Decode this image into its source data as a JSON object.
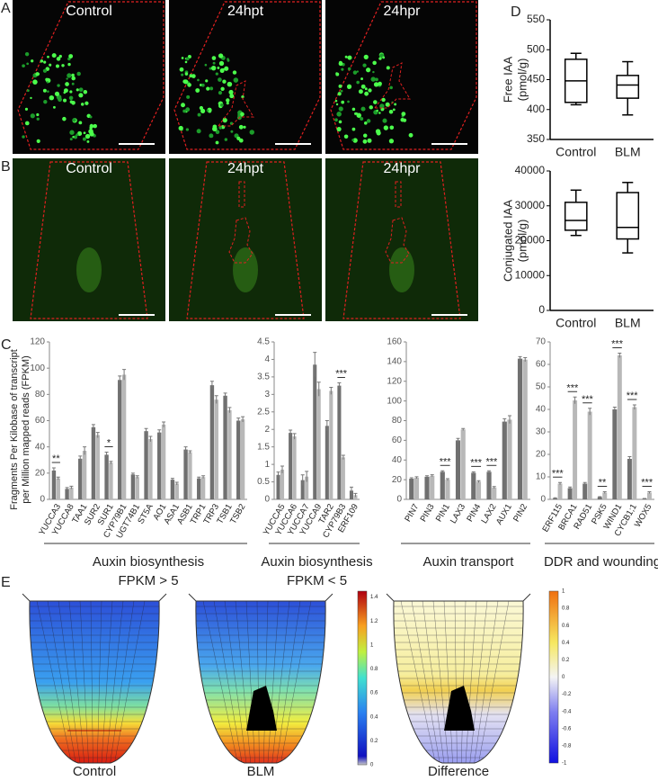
{
  "panel_letters": [
    "A",
    "B",
    "C",
    "D",
    "E"
  ],
  "panel_a": {
    "labels": [
      "Control",
      "24hpt",
      "24hpr"
    ]
  },
  "panel_b": {
    "labels": [
      "Control",
      "24hpt",
      "24hpr"
    ]
  },
  "panel_e": {
    "labels": [
      "Control",
      "BLM",
      "Difference"
    ],
    "scale1_lim": [
      0,
      1.45
    ],
    "scale1_ticks": [
      0,
      0.2,
      0.4,
      0.6,
      0.8,
      1,
      1.2,
      1.4
    ],
    "scale2_lim": [
      -1,
      1
    ],
    "scale2_ticks": [
      -1,
      -0.8,
      -0.6,
      -0.4,
      -0.2,
      0,
      0.2,
      0.4,
      0.6,
      0.8,
      1
    ]
  },
  "chart_data": [
    {
      "type": "bar",
      "ylabel": [
        "Fragments Per Kilobase of transcript",
        "per Million mapped reads (FPKM)"
      ],
      "xlabel": [
        "Auxin biosynthesis",
        "FPKM > 5"
      ],
      "categories": [
        "YUCCA3",
        "YUCCA8",
        "TAA1",
        "SUR2",
        "SUR1",
        "CYP79B1",
        "UGT74B1",
        "ST5A",
        "AO1",
        "ASA1",
        "ASB1",
        "TRP1",
        "TRP3",
        "TSB1",
        "TSB2"
      ],
      "series": [
        {
          "color": "#707070",
          "values": [
            22,
            8,
            31,
            55,
            34,
            91,
            19,
            52,
            51,
            15,
            38,
            16,
            87,
            79,
            60
          ],
          "errors": [
            2,
            1,
            2,
            2,
            2,
            3,
            1,
            2,
            2,
            1,
            2,
            1,
            3,
            2,
            2
          ]
        },
        {
          "color": "#b8b8b8",
          "values": [
            16,
            9,
            37,
            49,
            28,
            95,
            17,
            46,
            57,
            12,
            36,
            17,
            76,
            68,
            61
          ],
          "errors": [
            1,
            1,
            3,
            2,
            1,
            4,
            1,
            2,
            2,
            1,
            1,
            1,
            3,
            2,
            2
          ]
        }
      ],
      "significance": [
        "**",
        null,
        null,
        null,
        "*",
        null,
        null,
        null,
        null,
        null,
        null,
        null,
        null,
        null,
        null
      ],
      "ylim": [
        0,
        120
      ],
      "yticks": [
        0,
        20,
        40,
        60,
        80,
        100,
        120
      ]
    },
    {
      "type": "bar",
      "xlabel": [
        "Auxin biosynthesis",
        "FPKM < 5"
      ],
      "categories": [
        "YUCCA5",
        "YUCCA6",
        "YUCCA7",
        "YUCCA9",
        "TAR2",
        "CYP79B3",
        "ERF109"
      ],
      "series": [
        {
          "color": "#707070",
          "values": [
            0.7,
            1.9,
            0.55,
            3.85,
            2.1,
            3.25,
            0.25
          ],
          "errors": [
            0.08,
            0.08,
            0.15,
            0.35,
            0.15,
            0.08,
            0.1
          ]
        },
        {
          "color": "#b8b8b8",
          "values": [
            0.85,
            1.8,
            0.65,
            3.15,
            3.1,
            1.2,
            0.12
          ],
          "errors": [
            0.1,
            0.08,
            0.15,
            0.2,
            0.1,
            0.06,
            0.05
          ]
        }
      ],
      "significance": [
        null,
        null,
        null,
        null,
        null,
        "***",
        null
      ],
      "ylim": [
        0,
        4.5
      ],
      "yticks": [
        0,
        0.5,
        1,
        1.5,
        2,
        2.5,
        3,
        3.5,
        4,
        4.5
      ]
    },
    {
      "type": "bar",
      "xlabel": [
        "Auxin transport"
      ],
      "categories": [
        "PIN7",
        "PIN3",
        "PIN1",
        "LAX3",
        "PIN4",
        "LAX2",
        "AUX1",
        "PIN2"
      ],
      "series": [
        {
          "color": "#707070",
          "values": [
            21,
            23,
            28,
            60,
            27,
            28,
            79,
            143
          ],
          "errors": [
            1,
            1,
            1,
            2,
            1,
            1,
            3,
            2
          ]
        },
        {
          "color": "#b8b8b8",
          "values": [
            22,
            24,
            20,
            71,
            18,
            12,
            81,
            142
          ],
          "errors": [
            1,
            1,
            1,
            1,
            1,
            1,
            4,
            2
          ]
        }
      ],
      "significance": [
        null,
        null,
        "***",
        null,
        "***",
        "***",
        null,
        null
      ],
      "ylim": [
        0,
        160
      ],
      "yticks": [
        0,
        20,
        40,
        60,
        80,
        100,
        120,
        140,
        160
      ]
    },
    {
      "type": "bar",
      "xlabel": [
        "DDR and wounding"
      ],
      "categories": [
        "ERF115",
        "BRCA1",
        "RAD51",
        "PSK5",
        "WIND1",
        "CYCB1;1",
        "WOX5"
      ],
      "series": [
        {
          "color": "#707070",
          "values": [
            0.5,
            5,
            7,
            1,
            40,
            18,
            0.3
          ],
          "errors": [
            0.2,
            0.5,
            0.5,
            0.2,
            1,
            1,
            0.1
          ]
        },
        {
          "color": "#b8b8b8",
          "values": [
            7,
            44,
            39,
            3,
            64,
            41,
            3
          ],
          "errors": [
            0.5,
            1.5,
            1.5,
            0.4,
            1,
            1,
            0.4
          ]
        }
      ],
      "significance": [
        "***",
        "***",
        "***",
        "**",
        "***",
        "***",
        "***"
      ],
      "ylim": [
        0,
        70
      ],
      "yticks": [
        0,
        10,
        20,
        30,
        40,
        50,
        60,
        70
      ]
    },
    {
      "type": "box",
      "ylabel": [
        "Free IAA",
        "(pmol/g)"
      ],
      "categories": [
        "Control",
        "BLM"
      ],
      "boxes": [
        {
          "min": 408,
          "q1": 412,
          "median": 448,
          "q3": 484,
          "max": 494
        },
        {
          "min": 391,
          "q1": 419,
          "median": 441,
          "q3": 457,
          "max": 480
        }
      ],
      "ylim": [
        350,
        550
      ],
      "yticks": [
        350,
        400,
        450,
        500,
        550
      ]
    },
    {
      "type": "box",
      "ylabel": [
        "Conjugated IAA",
        "(pmol/g)"
      ],
      "categories": [
        "Control",
        "BLM"
      ],
      "boxes": [
        {
          "min": 21500,
          "q1": 23000,
          "median": 25800,
          "q3": 31000,
          "max": 34500
        },
        {
          "min": 16500,
          "q1": 20500,
          "median": 23800,
          "q3": 33800,
          "max": 36700
        }
      ],
      "ylim": [
        0,
        40000
      ],
      "yticks": [
        0,
        10000,
        20000,
        30000,
        40000
      ]
    }
  ]
}
